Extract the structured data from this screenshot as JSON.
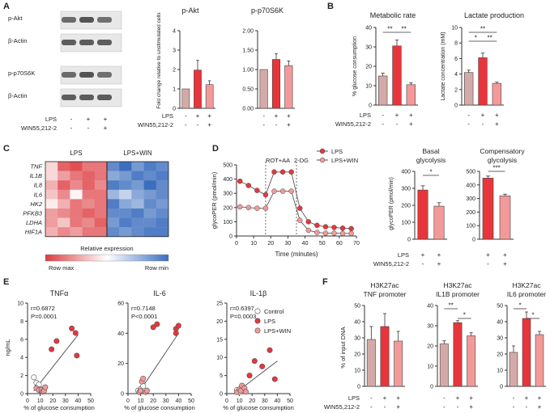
{
  "colors": {
    "control": "#d4aaa8",
    "lps": "#e8353c",
    "win": "#f4999a",
    "axis": "#333333"
  },
  "panels": {
    "A": {
      "letter": "A",
      "blot_labels": [
        "p-Akt",
        "β-Actin",
        "p-p70S6K",
        "β-Actin"
      ],
      "conditions": {
        "lps_label": "LPS",
        "win_label": "WIN55,212-2",
        "lps": [
          "-",
          "+",
          "+"
        ],
        "win": [
          "-",
          "-",
          "+"
        ]
      },
      "charts": [
        {
          "type": "bar",
          "title": "p-Akt",
          "ylabel": "Fold change relative to unstimulated cells",
          "ylim": [
            0,
            4
          ],
          "yticks": [
            0,
            1,
            2,
            3,
            4
          ],
          "values": [
            1.0,
            1.97,
            1.22
          ],
          "errors": [
            0,
            0.5,
            0.2
          ]
        },
        {
          "type": "bar",
          "title": "p-p70S6K",
          "ylabel": "",
          "ylim": [
            0,
            2
          ],
          "yticks": [
            "0.00",
            "0.50",
            "1.00",
            "1.50",
            "2.00"
          ],
          "values": [
            1.0,
            1.26,
            1.1
          ],
          "errors": [
            0,
            0.15,
            0.12
          ]
        }
      ]
    },
    "B": {
      "letter": "B",
      "conditions": {
        "lps_label": "LPS",
        "win_label": "WIN55,212-2",
        "lps": [
          "-",
          "+",
          "+"
        ],
        "win": [
          "-",
          "-",
          "+"
        ]
      },
      "charts": [
        {
          "type": "bar",
          "title": "Metabolic rate",
          "ylabel": "% glucose consumption",
          "ylim": [
            0,
            40
          ],
          "yticks": [
            0,
            10,
            20,
            30,
            40
          ],
          "values": [
            15,
            30.5,
            10.5
          ],
          "errors": [
            1.5,
            3,
            1
          ],
          "significance": [
            "**",
            "**"
          ]
        },
        {
          "type": "bar",
          "title": "Lactate production",
          "ylabel": "Lactate concentration (mM)",
          "ylim": [
            0,
            10
          ],
          "yticks": [
            0,
            2,
            4,
            6,
            8,
            10
          ],
          "values": [
            4.2,
            6.1,
            2.8
          ],
          "errors": [
            0.3,
            0.6,
            0.15
          ],
          "significance": [
            "*",
            "**",
            "**"
          ]
        }
      ]
    },
    "C": {
      "letter": "C",
      "type": "heatmap",
      "groups": [
        "LPS",
        "LPS+WIN"
      ],
      "genes": [
        "TNF",
        "IL1B",
        "IL8",
        "IL6",
        "HK2",
        "PFKB3",
        "LDHA",
        "HIF1A"
      ],
      "values": [
        [
          0.2,
          0.8,
          0.9,
          0.7,
          0.7,
          -0.8,
          -1.0,
          -0.7,
          -0.9,
          -0.8
        ],
        [
          0.2,
          0.5,
          0.7,
          0.8,
          0.7,
          -0.6,
          -0.7,
          -0.9,
          -0.8,
          -0.9
        ],
        [
          0.4,
          0.8,
          0.6,
          0.8,
          0.6,
          -0.9,
          -0.8,
          -0.7,
          -1.0,
          -0.8
        ],
        [
          0.3,
          0.6,
          0.05,
          0.7,
          0.7,
          -0.5,
          -0.3,
          -0.6,
          -0.7,
          -0.8
        ],
        [
          0.1,
          0.4,
          0.7,
          0.6,
          0.7,
          -0.9,
          -0.6,
          -0.5,
          -0.8,
          -0.7
        ],
        [
          0.5,
          0.6,
          0.7,
          0.8,
          0.7,
          -0.8,
          -0.8,
          -0.9,
          -0.7,
          -0.8
        ],
        [
          0.5,
          0.3,
          0.7,
          0.6,
          0.8,
          -0.7,
          -0.9,
          -0.8,
          -0.8,
          -0.9
        ],
        [
          0.4,
          0.6,
          0.5,
          0.7,
          0.7,
          -0.8,
          -0.7,
          -0.8,
          -0.9,
          -0.9
        ]
      ],
      "legend_title": "Relative expression",
      "legend_max": "Row max",
      "legend_min": "Row min"
    },
    "D": {
      "letter": "D",
      "line": {
        "type": "line",
        "ylabel": "glycoPER (pmol/min)",
        "xlabel": "Time (minutes)",
        "xlim": [
          0,
          70
        ],
        "ylim": [
          0,
          500
        ],
        "xticks": [
          0,
          10,
          20,
          30,
          40,
          50,
          60,
          70
        ],
        "yticks": [
          0,
          100,
          200,
          300,
          400,
          500
        ],
        "x": [
          2,
          7,
          12,
          17,
          22,
          27,
          32,
          37,
          42,
          47,
          52,
          57,
          62,
          67
        ],
        "series": [
          {
            "name": "LPS",
            "values": [
              385,
              355,
              320,
              290,
              450,
              450,
              450,
              195,
              100,
              75,
              65,
              60,
              55,
              52
            ]
          },
          {
            "name": "LPS+WIN",
            "values": [
              205,
              200,
              195,
              195,
              315,
              315,
              315,
              110,
              40,
              25,
              20,
              20,
              18,
              18
            ]
          }
        ],
        "annotations": [
          {
            "label": "ROT+AA",
            "x": 17
          },
          {
            "label": "2-DG",
            "x": 35
          }
        ]
      },
      "bars": [
        {
          "type": "bar",
          "title": "Basal glycolysis",
          "ylim": [
            0,
            400
          ],
          "yticks": [
            0,
            100,
            200,
            300,
            400
          ],
          "ylabel": "glycoPER (pmol/min)",
          "values": [
            290,
            195
          ],
          "errors": [
            25,
            20
          ],
          "significance": [
            "*"
          ]
        },
        {
          "type": "bar",
          "title": "Compensatory glycolysis",
          "ylim": [
            0,
            500
          ],
          "yticks": [
            0,
            100,
            200,
            300,
            400,
            500
          ],
          "values": [
            450,
            320
          ],
          "errors": [
            15,
            12
          ],
          "significance": [
            "***"
          ]
        }
      ],
      "conditions": {
        "lps_label": "LPS",
        "win_label": "WIN55,212-2",
        "lps": [
          "+",
          "+"
        ],
        "win": [
          "-",
          "+"
        ]
      }
    },
    "E": {
      "letter": "E",
      "ylabel": "ng/mL",
      "xlabel": "% of glucose consumption",
      "legend": [
        "Control",
        "LPS",
        "LPS+WIN"
      ],
      "charts": [
        {
          "type": "scatter",
          "title": "TNFα",
          "stats": [
            "r=0.6872",
            "P=0.0001"
          ],
          "xlim": [
            0,
            50
          ],
          "ylim": [
            0,
            10
          ],
          "xticks": [
            0,
            10,
            20,
            30,
            40,
            50
          ],
          "yticks": [
            0,
            2,
            4,
            6,
            8,
            10
          ],
          "control": [
            [
              5,
              1.8
            ],
            [
              7,
              1.2
            ],
            [
              8,
              0.8
            ],
            [
              9,
              1.0
            ],
            [
              10,
              0.5
            ],
            [
              11,
              0.3
            ]
          ],
          "lps": [
            [
              19,
              4.9
            ],
            [
              23,
              5.8
            ],
            [
              35,
              7.2
            ],
            [
              38,
              6.7
            ],
            [
              39,
              4.2
            ]
          ],
          "win": [
            [
              7,
              0.6
            ],
            [
              9,
              0.4
            ],
            [
              11,
              0.4
            ],
            [
              12,
              0.2
            ],
            [
              13,
              0.3
            ],
            [
              14,
              0.7
            ]
          ],
          "fit": [
            [
              5,
              0.3
            ],
            [
              40,
              6.5
            ]
          ]
        },
        {
          "type": "scatter",
          "title": "IL-6",
          "stats": [
            "r=0.7148",
            "P<0.0001"
          ],
          "xlim": [
            0,
            50
          ],
          "ylim": [
            0,
            60
          ],
          "xticks": [
            0,
            10,
            20,
            30,
            40,
            50
          ],
          "yticks": [
            0,
            20,
            40,
            60
          ],
          "control": [
            [
              8,
              2
            ],
            [
              10,
              3
            ],
            [
              12,
              5
            ]
          ],
          "lps": [
            [
              20,
              44
            ],
            [
              23,
              46
            ],
            [
              38,
              40
            ],
            [
              38,
              43
            ],
            [
              40,
              45
            ]
          ],
          "win": [
            [
              9,
              1
            ],
            [
              10,
              2
            ],
            [
              11,
              8
            ],
            [
              12,
              10
            ],
            [
              14,
              1
            ],
            [
              15,
              2
            ]
          ],
          "fit": [
            [
              8,
              0
            ],
            [
              40,
              40
            ]
          ]
        },
        {
          "type": "scatter",
          "title": "IL-1β",
          "stats": [
            "r=0.6397",
            "P=0.0003"
          ],
          "xlim": [
            0,
            50
          ],
          "ylim": [
            0,
            25
          ],
          "xticks": [
            0,
            10,
            20,
            30,
            40,
            50
          ],
          "yticks": [
            0,
            5,
            10,
            15,
            20,
            25
          ],
          "control": [
            [
              8,
              1
            ],
            [
              9,
              0.6
            ],
            [
              10,
              0.4
            ]
          ],
          "lps": [
            [
              18,
              5
            ],
            [
              22,
              9
            ],
            [
              28,
              7.5
            ],
            [
              34,
              12
            ],
            [
              38,
              4
            ]
          ],
          "win": [
            [
              8,
              0.4
            ],
            [
              10,
              1.2
            ],
            [
              11,
              0.8
            ],
            [
              12,
              2.2
            ],
            [
              14,
              1.5
            ],
            [
              15,
              0.5
            ]
          ],
          "fit": [
            [
              8,
              0.5
            ],
            [
              40,
              9
            ]
          ]
        }
      ]
    },
    "F": {
      "letter": "F",
      "ylabel": "% of input DNA",
      "conditions": {
        "lps_label": "LPS",
        "win_label": "WIN55,212-2",
        "lps": [
          "-",
          "+",
          "+"
        ],
        "win": [
          "-",
          "-",
          "+"
        ]
      },
      "charts": [
        {
          "type": "bar",
          "title": "H3K27ac",
          "subtitle": "TNF promoter",
          "ylim": [
            0,
            50
          ],
          "yticks": [
            0,
            10,
            20,
            30,
            40,
            50
          ],
          "values": [
            29,
            37,
            28
          ],
          "errors": [
            8,
            8,
            6
          ],
          "significance": []
        },
        {
          "type": "bar",
          "title": "H3K27ac",
          "subtitle": "IL1B promoter",
          "ylim": [
            0,
            40
          ],
          "yticks": [
            0,
            10,
            20,
            30,
            40
          ],
          "values": [
            21,
            31.5,
            25
          ],
          "errors": [
            1.5,
            1,
            1.5
          ],
          "significance": [
            "**",
            "*"
          ]
        },
        {
          "type": "bar",
          "title": "H3K27ac",
          "subtitle": "IL6 promoter",
          "ylim": [
            0,
            50
          ],
          "yticks": [
            0,
            10,
            20,
            30,
            40,
            50
          ],
          "values": [
            21,
            42,
            32
          ],
          "errors": [
            4,
            4,
            2
          ],
          "significance": [
            "*",
            "*"
          ]
        }
      ]
    }
  }
}
